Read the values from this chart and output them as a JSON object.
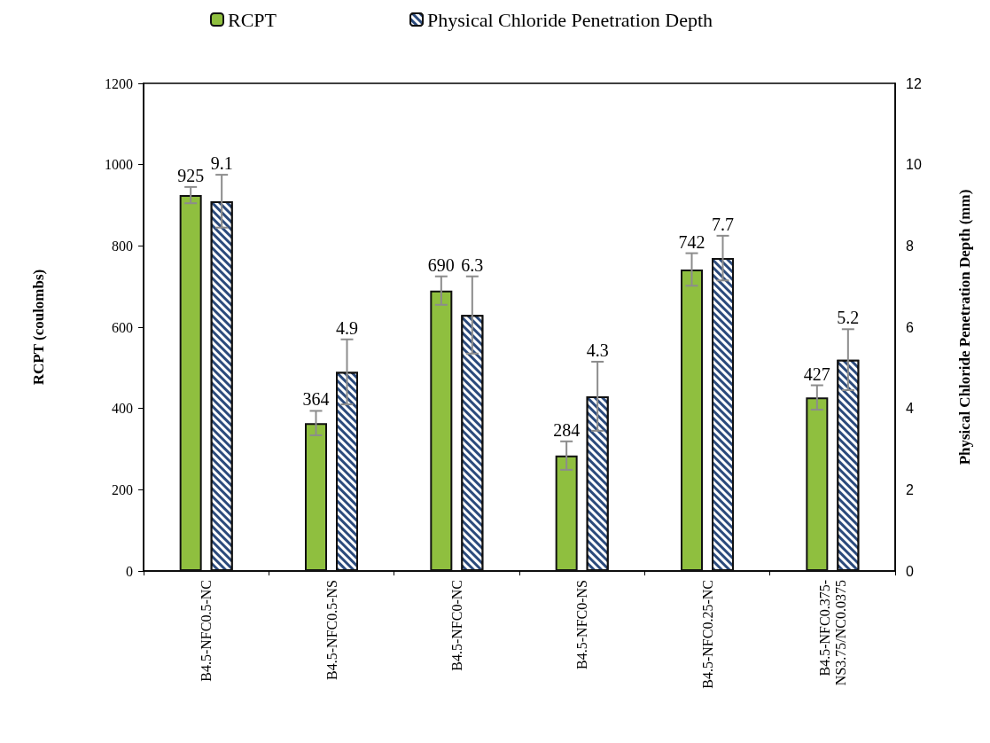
{
  "chart_data": {
    "type": "bar",
    "categories": [
      "B4.5-NFC0.5-NC",
      "B4.5-NFC0.5-NS",
      "B4.5-NFC0-NC",
      "B4.5-NFC0-NS",
      "B4.5-NFC0.25-NC",
      "B4.5-NFC0.375-\nNS3.75/NC0.0375"
    ],
    "series": [
      {
        "name": "RCPT",
        "color": "#8fbf3f",
        "values": [
          925,
          364,
          690,
          284,
          742,
          427
        ],
        "errors": [
          20,
          30,
          35,
          35,
          40,
          30
        ]
      },
      {
        "name": "Physical Chloride Penetration Depth",
        "color": "#2b4a7c",
        "axis": "y2",
        "values": [
          9.1,
          4.9,
          6.3,
          4.3,
          7.7,
          5.2
        ],
        "errors": [
          0.65,
          0.8,
          0.95,
          0.85,
          0.55,
          0.75
        ]
      }
    ],
    "ylabel": "RCPT (coulombs)",
    "y2label": "Physical Chloride Penetration Depth (mm)",
    "ylim": [
      0,
      1200
    ],
    "yticks": [
      0,
      200,
      400,
      600,
      800,
      1000,
      1200
    ],
    "y2lim": [
      0,
      12
    ],
    "y2ticks": [
      0,
      2,
      4,
      6,
      8,
      10,
      12
    ],
    "legend": "top",
    "grid": false,
    "data_labels": true
  }
}
